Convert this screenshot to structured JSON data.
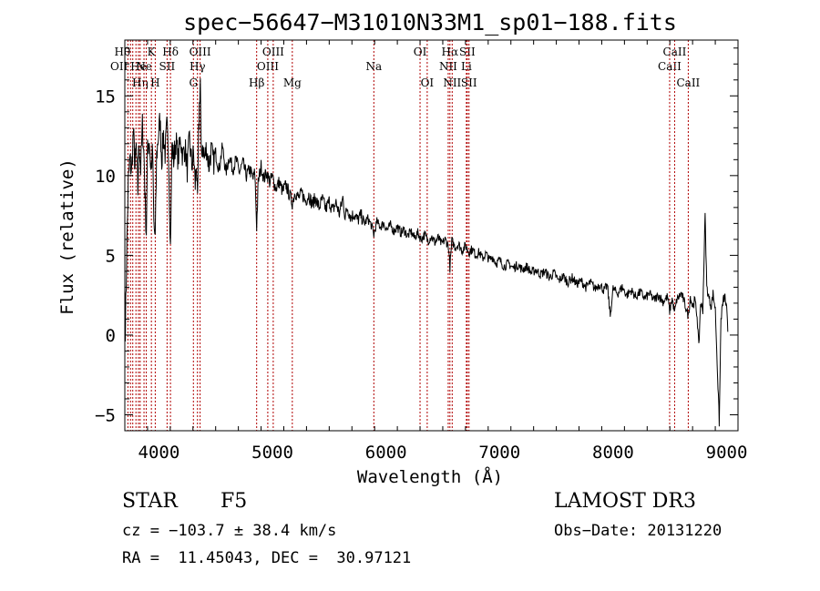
{
  "chart_data": {
    "type": "line",
    "title": "spec−56647−M31010N33M1_sp01−188.fits",
    "xlabel": "Wavelength (Å)",
    "ylabel": "Flux (relative)",
    "xlim": [
      3700,
      9100
    ],
    "ylim": [
      -6,
      18.5
    ],
    "xticks": [
      {
        "value": 4000,
        "label": "4000"
      },
      {
        "value": 5000,
        "label": "5000"
      },
      {
        "value": 6000,
        "label": "6000"
      },
      {
        "value": 7000,
        "label": "7000"
      },
      {
        "value": 8000,
        "label": "8000"
      },
      {
        "value": 9000,
        "label": "9000"
      }
    ],
    "yticks": [
      {
        "value": -5,
        "label": "−5"
      },
      {
        "value": 0,
        "label": "0"
      },
      {
        "value": 5,
        "label": "5"
      },
      {
        "value": 10,
        "label": "10"
      },
      {
        "value": 15,
        "label": "15"
      }
    ],
    "series": [
      {
        "name": "flux",
        "points": [
          [
            3705,
            0.5
          ],
          [
            3715,
            4.5
          ],
          [
            3730,
            9.5
          ],
          [
            3745,
            11.0
          ],
          [
            3760,
            10.2
          ],
          [
            3775,
            12.8
          ],
          [
            3790,
            10.5
          ],
          [
            3800,
            11.8
          ],
          [
            3815,
            9.0
          ],
          [
            3825,
            12.2
          ],
          [
            3840,
            10.4
          ],
          [
            3855,
            13.2
          ],
          [
            3870,
            11.0
          ],
          [
            3880,
            8.2
          ],
          [
            3889,
            6.5
          ],
          [
            3900,
            11.5
          ],
          [
            3915,
            12.4
          ],
          [
            3930,
            10.3
          ],
          [
            3945,
            11.6
          ],
          [
            3955,
            7.0
          ],
          [
            3968,
            6.0
          ],
          [
            3980,
            11.2
          ],
          [
            3995,
            12.5
          ],
          [
            4010,
            13.5
          ],
          [
            4025,
            11.0
          ],
          [
            4040,
            12.6
          ],
          [
            4055,
            11.4
          ],
          [
            4070,
            13.0
          ],
          [
            4085,
            11.6
          ],
          [
            4102,
            5.5
          ],
          [
            4115,
            12.0
          ],
          [
            4130,
            11.0
          ],
          [
            4150,
            12.2
          ],
          [
            4170,
            11.0
          ],
          [
            4190,
            12.4
          ],
          [
            4210,
            11.2
          ],
          [
            4230,
            11.8
          ],
          [
            4250,
            10.4
          ],
          [
            4270,
            12.3
          ],
          [
            4290,
            10.6
          ],
          [
            4305,
            11.4
          ],
          [
            4320,
            9.4
          ],
          [
            4330,
            11.0
          ],
          [
            4340,
            8.0
          ],
          [
            4350,
            12.5
          ],
          [
            4360,
            15.2
          ],
          [
            4365,
            16.0
          ],
          [
            4372,
            11.2
          ],
          [
            4385,
            12.0
          ],
          [
            4400,
            11.0
          ],
          [
            4420,
            11.8
          ],
          [
            4440,
            10.6
          ],
          [
            4460,
            11.6
          ],
          [
            4480,
            10.8
          ],
          [
            4500,
            11.4
          ],
          [
            4530,
            10.4
          ],
          [
            4560,
            11.8
          ],
          [
            4590,
            10.2
          ],
          [
            4620,
            11.2
          ],
          [
            4650,
            10.4
          ],
          [
            4680,
            11.0
          ],
          [
            4710,
            10.2
          ],
          [
            4740,
            10.8
          ],
          [
            4770,
            10.0
          ],
          [
            4800,
            10.4
          ],
          [
            4830,
            9.8
          ],
          [
            4845,
            10.2
          ],
          [
            4861,
            6.8
          ],
          [
            4875,
            9.6
          ],
          [
            4900,
            10.6
          ],
          [
            4925,
            9.8
          ],
          [
            4950,
            10.2
          ],
          [
            4975,
            9.6
          ],
          [
            5000,
            9.9
          ],
          [
            5030,
            9.2
          ],
          [
            5060,
            9.6
          ],
          [
            5090,
            9.0
          ],
          [
            5120,
            9.4
          ],
          [
            5150,
            8.8
          ],
          [
            5175,
            8.3
          ],
          [
            5200,
            9.0
          ],
          [
            5230,
            8.6
          ],
          [
            5260,
            8.9
          ],
          [
            5290,
            8.4
          ],
          [
            5320,
            8.8
          ],
          [
            5350,
            8.2
          ],
          [
            5380,
            8.6
          ],
          [
            5410,
            8.0
          ],
          [
            5440,
            8.5
          ],
          [
            5470,
            7.9
          ],
          [
            5500,
            8.4
          ],
          [
            5530,
            7.8
          ],
          [
            5560,
            8.3
          ],
          [
            5590,
            7.6
          ],
          [
            5620,
            8.6
          ],
          [
            5640,
            7.4
          ],
          [
            5660,
            8.0
          ],
          [
            5690,
            7.4
          ],
          [
            5720,
            7.6
          ],
          [
            5750,
            7.2
          ],
          [
            5780,
            7.5
          ],
          [
            5810,
            7.0
          ],
          [
            5840,
            7.3
          ],
          [
            5870,
            6.9
          ],
          [
            5893,
            6.3
          ],
          [
            5920,
            7.1
          ],
          [
            5950,
            6.8
          ],
          [
            5980,
            7.0
          ],
          [
            6010,
            6.6
          ],
          [
            6040,
            6.9
          ],
          [
            6070,
            6.5
          ],
          [
            6100,
            6.8
          ],
          [
            6130,
            6.4
          ],
          [
            6160,
            6.6
          ],
          [
            6190,
            6.2
          ],
          [
            6220,
            6.5
          ],
          [
            6250,
            6.1
          ],
          [
            6280,
            6.4
          ],
          [
            6310,
            6.0
          ],
          [
            6340,
            6.3
          ],
          [
            6370,
            5.9
          ],
          [
            6400,
            6.2
          ],
          [
            6430,
            5.8
          ],
          [
            6460,
            6.1
          ],
          [
            6490,
            5.7
          ],
          [
            6520,
            6.0
          ],
          [
            6550,
            5.6
          ],
          [
            6563,
            4.2
          ],
          [
            6580,
            5.9
          ],
          [
            6610,
            5.5
          ],
          [
            6640,
            5.7
          ],
          [
            6670,
            5.3
          ],
          [
            6700,
            5.6
          ],
          [
            6730,
            5.2
          ],
          [
            6760,
            5.4
          ],
          [
            6790,
            5.0
          ],
          [
            6820,
            5.2
          ],
          [
            6850,
            4.8
          ],
          [
            6880,
            5.1
          ],
          [
            6910,
            4.7
          ],
          [
            6940,
            4.9
          ],
          [
            6970,
            4.5
          ],
          [
            7000,
            4.7
          ],
          [
            7040,
            4.3
          ],
          [
            7080,
            4.5
          ],
          [
            7120,
            4.2
          ],
          [
            7160,
            4.4
          ],
          [
            7200,
            4.1
          ],
          [
            7240,
            4.3
          ],
          [
            7280,
            3.9
          ],
          [
            7320,
            4.1
          ],
          [
            7360,
            3.8
          ],
          [
            7400,
            4.0
          ],
          [
            7440,
            3.6
          ],
          [
            7480,
            3.9
          ],
          [
            7520,
            3.4
          ],
          [
            7560,
            3.7
          ],
          [
            7600,
            3.3
          ],
          [
            7640,
            3.6
          ],
          [
            7680,
            3.2
          ],
          [
            7720,
            3.4
          ],
          [
            7760,
            3.0
          ],
          [
            7800,
            3.3
          ],
          [
            7840,
            2.9
          ],
          [
            7880,
            3.2
          ],
          [
            7920,
            2.8
          ],
          [
            7950,
            3.1
          ],
          [
            7975,
            1.2
          ],
          [
            8000,
            2.9
          ],
          [
            8040,
            2.6
          ],
          [
            8080,
            3.0
          ],
          [
            8120,
            2.5
          ],
          [
            8160,
            2.8
          ],
          [
            8200,
            2.4
          ],
          [
            8240,
            2.7
          ],
          [
            8280,
            2.3
          ],
          [
            8320,
            2.6
          ],
          [
            8360,
            2.2
          ],
          [
            8400,
            2.5
          ],
          [
            8440,
            2.1
          ],
          [
            8480,
            2.4
          ],
          [
            8498,
            1.5
          ],
          [
            8520,
            2.3
          ],
          [
            8542,
            1.4
          ],
          [
            8560,
            2.2
          ],
          [
            8600,
            2.6
          ],
          [
            8630,
            2.0
          ],
          [
            8662,
            1.2
          ],
          [
            8680,
            2.4
          ],
          [
            8700,
            1.8
          ],
          [
            8720,
            2.2
          ],
          [
            8740,
            1.2
          ],
          [
            8755,
            -0.8
          ],
          [
            8770,
            2.0
          ],
          [
            8790,
            1.6
          ],
          [
            8810,
            7.6
          ],
          [
            8825,
            3.0
          ],
          [
            8845,
            2.3
          ],
          [
            8865,
            1.8
          ],
          [
            8880,
            2.6
          ],
          [
            8900,
            1.6
          ],
          [
            8920,
            -2.5
          ],
          [
            8935,
            -5.5
          ],
          [
            8950,
            1.0
          ],
          [
            8970,
            2.2
          ],
          [
            8985,
            2.4
          ],
          [
            9000,
            1.6
          ],
          [
            9010,
            0.2
          ]
        ]
      }
    ],
    "lines": [
      {
        "x": 3727,
        "label": "OII",
        "row": 2,
        "anchor": "end"
      },
      {
        "x": 3750,
        "label": "Hθ",
        "row": 1,
        "anchor": "end"
      },
      {
        "x": 3770,
        "label": "",
        "row": 0,
        "anchor": "middle"
      },
      {
        "x": 3798,
        "label": "",
        "row": 0,
        "anchor": "middle"
      },
      {
        "x": 3820,
        "label": "He",
        "row": 2,
        "anchor": "middle"
      },
      {
        "x": 3835,
        "label": "Hη",
        "row": 3,
        "anchor": "middle"
      },
      {
        "x": 3869,
        "label": "Ne",
        "row": 2,
        "anchor": "middle"
      },
      {
        "x": 3889,
        "label": "",
        "row": 0,
        "anchor": "middle"
      },
      {
        "x": 3934,
        "label": "K",
        "row": 1,
        "anchor": "middle"
      },
      {
        "x": 3968,
        "label": "H",
        "row": 3,
        "anchor": "middle"
      },
      {
        "x": 4072,
        "label": "SII",
        "row": 2,
        "anchor": "middle"
      },
      {
        "x": 4102,
        "label": "Hδ",
        "row": 1,
        "anchor": "middle"
      },
      {
        "x": 4304,
        "label": "G",
        "row": 3,
        "anchor": "middle"
      },
      {
        "x": 4340,
        "label": "Hγ",
        "row": 2,
        "anchor": "middle"
      },
      {
        "x": 4363,
        "label": "OIII",
        "row": 1,
        "anchor": "middle"
      },
      {
        "x": 4861,
        "label": "Hβ",
        "row": 3,
        "anchor": "middle"
      },
      {
        "x": 4959,
        "label": "OIII",
        "row": 2,
        "anchor": "middle"
      },
      {
        "x": 5007,
        "label": "OIII",
        "row": 1,
        "anchor": "middle"
      },
      {
        "x": 5175,
        "label": "Mg",
        "row": 3,
        "anchor": "middle"
      },
      {
        "x": 5893,
        "label": "Na",
        "row": 2,
        "anchor": "middle"
      },
      {
        "x": 6300,
        "label": "OI",
        "row": 1,
        "anchor": "middle"
      },
      {
        "x": 6363,
        "label": "OI",
        "row": 3,
        "anchor": "middle"
      },
      {
        "x": 6548,
        "label": "NII",
        "row": 2,
        "anchor": "middle"
      },
      {
        "x": 6563,
        "label": "Hα",
        "row": 1,
        "anchor": "middle"
      },
      {
        "x": 6583,
        "label": "NII",
        "row": 3,
        "anchor": "middle"
      },
      {
        "x": 6708,
        "label": "Li",
        "row": 2,
        "anchor": "middle"
      },
      {
        "x": 6716,
        "label": "SII",
        "row": 1,
        "anchor": "middle"
      },
      {
        "x": 6731,
        "label": "SII",
        "row": 3,
        "anchor": "middle"
      },
      {
        "x": 8498,
        "label": "CaII",
        "row": 2,
        "anchor": "middle"
      },
      {
        "x": 8542,
        "label": "CaII",
        "row": 1,
        "anchor": "middle"
      },
      {
        "x": 8662,
        "label": "CaII",
        "row": 3,
        "anchor": "middle"
      }
    ]
  },
  "footer": {
    "object_class": "STAR",
    "subclass": "F5",
    "survey": "LAMOST DR3",
    "cz": "cz = −103.7 ± 38.4 km/s",
    "obs_date": "Obs−Date: 20131220",
    "coords": "RA =  11.45043, DEC =  30.97121"
  }
}
